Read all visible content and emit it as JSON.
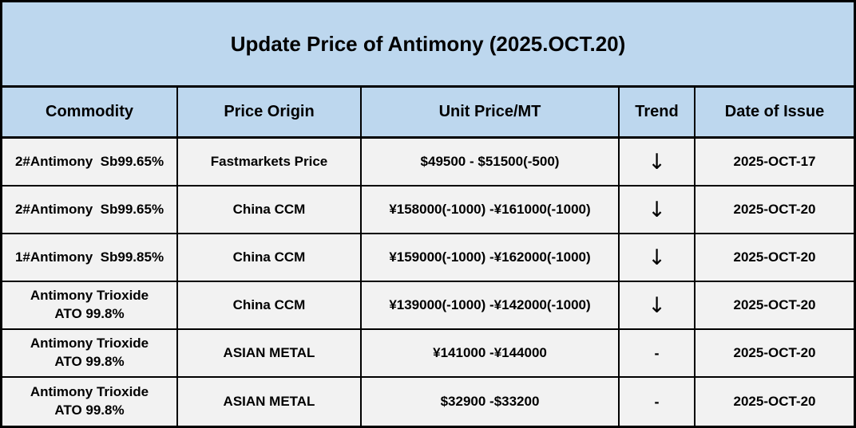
{
  "title": "Update Price of Antimony (2025.OCT.20)",
  "columns": {
    "commodity": "Commodity",
    "origin": "Price Origin",
    "price": "Unit Price/MT",
    "trend": "Trend",
    "date": "Date of Issue"
  },
  "rows": [
    {
      "commodity": "2#Antimony  Sb99.65%",
      "origin": "Fastmarkets Price",
      "price": "$49500 - $51500(-500)",
      "trend": "↓",
      "date": "2025-OCT-17"
    },
    {
      "commodity": "2#Antimony  Sb99.65%",
      "origin": "China CCM",
      "price": "¥158000(-1000) -¥161000(-1000)",
      "trend": "↓",
      "date": "2025-OCT-20"
    },
    {
      "commodity": "1#Antimony  Sb99.85%",
      "origin": "China CCM",
      "price": "¥159000(-1000) -¥162000(-1000)",
      "trend": "↓",
      "date": "2025-OCT-20"
    },
    {
      "commodity": "Antimony Trioxide\nATO 99.8%",
      "origin": "China CCM",
      "price": "¥139000(-1000) -¥142000(-1000)",
      "trend": "↓",
      "date": "2025-OCT-20"
    },
    {
      "commodity": "Antimony Trioxide\nATO 99.8%",
      "origin": "ASIAN METAL",
      "price": "¥141000 -¥144000",
      "trend": "-",
      "date": "2025-OCT-20"
    },
    {
      "commodity": "Antimony Trioxide\nATO 99.8%",
      "origin": "ASIAN METAL",
      "price": "$32900 -$33200",
      "trend": "-",
      "date": "2025-OCT-20"
    }
  ],
  "colors": {
    "title_header_bg": "#bdd7ee",
    "row_bg": "#f2f2f2",
    "border": "#000000",
    "text": "#000000"
  }
}
